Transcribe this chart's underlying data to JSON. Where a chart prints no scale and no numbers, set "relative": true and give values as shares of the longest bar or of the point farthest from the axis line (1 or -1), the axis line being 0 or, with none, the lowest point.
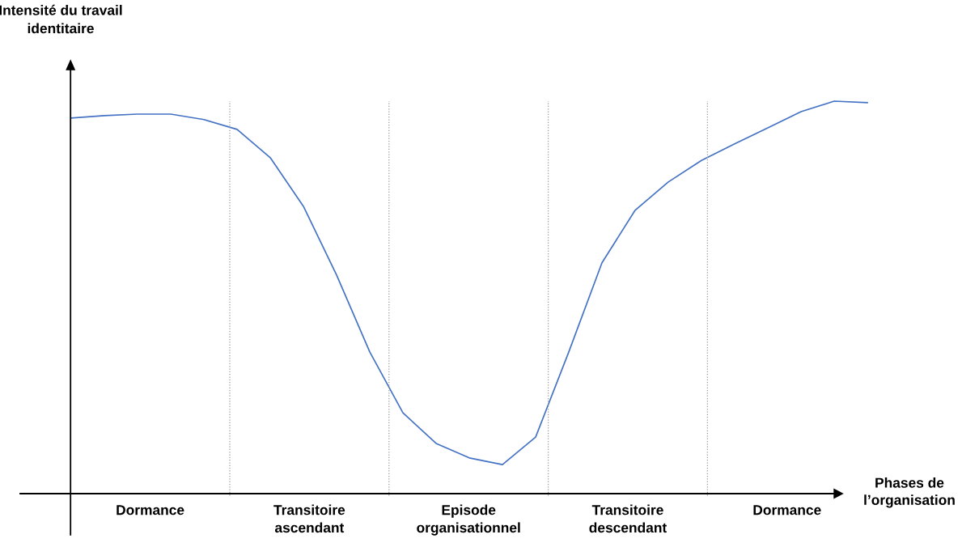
{
  "chart_data": {
    "type": "line",
    "relative": true,
    "xlabel": "Phases de\nl’organisation",
    "ylabel": "Intensité du travail\nidentitaire",
    "categories": [
      null,
      null,
      null,
      null,
      null,
      null,
      null,
      null,
      null,
      null,
      null,
      null,
      null,
      null,
      null,
      null,
      null,
      null,
      null,
      null,
      null,
      null,
      null,
      null,
      null
    ],
    "series": [
      {
        "color": "#4472c4",
        "values": [
          0.957,
          0.963,
          0.967,
          0.967,
          0.953,
          0.928,
          0.856,
          0.732,
          0.557,
          0.361,
          0.206,
          0.128,
          0.091,
          0.074,
          0.144,
          0.361,
          0.588,
          0.722,
          0.794,
          0.849,
          0.891,
          0.932,
          0.973,
          1.0,
          0.996
        ]
      }
    ],
    "annotations": [
      "Dormance",
      "Transitoire\nascendant",
      "Episode\norganisationnel",
      "Transitoire\ndescendant",
      "Dormance"
    ],
    "legend": false,
    "marker": "none",
    "line_style": "solid"
  }
}
